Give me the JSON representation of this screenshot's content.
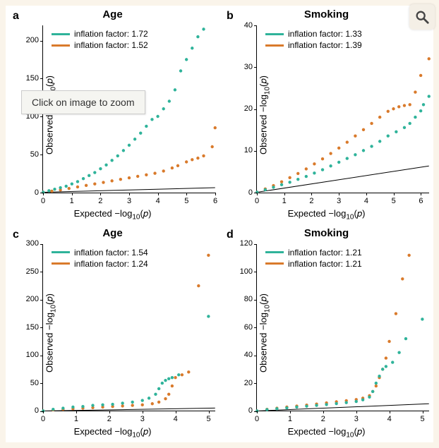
{
  "background_color": "#faf4ea",
  "figure_background": "#ffffff",
  "tooltip_text": "Click on image to zoom",
  "zoom_icon_name": "magnify-icon",
  "colors": {
    "series1": "#2fb39a",
    "series2": "#d97a2b",
    "reference_line": "#000000",
    "text": "#000000"
  },
  "marker": {
    "shape": "circle",
    "radius": 2.2
  },
  "legend_swatch": {
    "width": 26,
    "height": 3
  },
  "fontsize": {
    "panel_letter": 16,
    "title": 15,
    "axis_label": 13,
    "tick": 11,
    "legend": 12
  },
  "axis_labels": {
    "x_prefix": "Expected  −log",
    "x_sub": "10",
    "x_suffix": "(𝑝)",
    "y_prefix": "Observed  −log",
    "y_sub": "10",
    "y_suffix": "(𝑝)"
  },
  "panels": {
    "a": {
      "letter": "a",
      "title": "Age",
      "legend": [
        {
          "label": "inflation factor: 1.72",
          "color": "#2fb39a"
        },
        {
          "label": "inflation factor: 1.52",
          "color": "#d97a2b"
        }
      ],
      "xlim": [
        0,
        6
      ],
      "xticks": [
        0,
        1,
        2,
        3,
        4,
        5,
        6
      ],
      "ylim": [
        0,
        220
      ],
      "yticks": [
        0,
        50,
        100,
        150,
        200
      ],
      "reference_line": {
        "slope": 1,
        "intercept": 0
      },
      "series1": [
        [
          0,
          0
        ],
        [
          0.2,
          2
        ],
        [
          0.4,
          4
        ],
        [
          0.6,
          6
        ],
        [
          0.8,
          8
        ],
        [
          1.0,
          11
        ],
        [
          1.2,
          14
        ],
        [
          1.4,
          18
        ],
        [
          1.6,
          22
        ],
        [
          1.8,
          26
        ],
        [
          2.0,
          31
        ],
        [
          2.2,
          36
        ],
        [
          2.4,
          42
        ],
        [
          2.6,
          48
        ],
        [
          2.8,
          55
        ],
        [
          3.0,
          62
        ],
        [
          3.2,
          70
        ],
        [
          3.4,
          78
        ],
        [
          3.6,
          87
        ],
        [
          3.8,
          96
        ],
        [
          4.0,
          100
        ],
        [
          4.2,
          110
        ],
        [
          4.4,
          120
        ],
        [
          4.6,
          135
        ],
        [
          4.8,
          160
        ],
        [
          5.0,
          175
        ],
        [
          5.2,
          190
        ],
        [
          5.4,
          205
        ],
        [
          5.6,
          215
        ]
      ],
      "series2": [
        [
          0,
          0
        ],
        [
          0.3,
          1.5
        ],
        [
          0.6,
          3
        ],
        [
          0.9,
          5
        ],
        [
          1.2,
          7
        ],
        [
          1.5,
          9
        ],
        [
          1.8,
          11
        ],
        [
          2.1,
          13
        ],
        [
          2.4,
          15
        ],
        [
          2.7,
          17
        ],
        [
          3.0,
          19
        ],
        [
          3.3,
          21
        ],
        [
          3.6,
          23
        ],
        [
          3.9,
          25
        ],
        [
          4.2,
          28
        ],
        [
          4.5,
          32
        ],
        [
          4.7,
          35
        ],
        [
          5.0,
          40
        ],
        [
          5.2,
          43
        ],
        [
          5.4,
          45
        ],
        [
          5.6,
          48
        ],
        [
          5.9,
          60
        ],
        [
          6.0,
          85
        ]
      ]
    },
    "b": {
      "letter": "b",
      "title": "Smoking",
      "legend": [
        {
          "label": "inflation factor: 1.33",
          "color": "#2fb39a"
        },
        {
          "label": "inflation factor: 1.39",
          "color": "#d97a2b"
        }
      ],
      "xlim": [
        0,
        6.3
      ],
      "xticks": [
        0,
        1,
        2,
        3,
        4,
        5,
        6
      ],
      "ylim": [
        0,
        40
      ],
      "yticks": [
        0,
        10,
        20,
        30,
        40
      ],
      "reference_line": {
        "slope": 1,
        "intercept": 0
      },
      "series1": [
        [
          0,
          0
        ],
        [
          0.3,
          0.6
        ],
        [
          0.6,
          1.2
        ],
        [
          0.9,
          1.8
        ],
        [
          1.2,
          2.4
        ],
        [
          1.5,
          3.1
        ],
        [
          1.8,
          3.8
        ],
        [
          2.1,
          4.6
        ],
        [
          2.4,
          5.4
        ],
        [
          2.7,
          6.3
        ],
        [
          3.0,
          7.2
        ],
        [
          3.3,
          8.1
        ],
        [
          3.6,
          9.0
        ],
        [
          3.9,
          10.0
        ],
        [
          4.2,
          11.0
        ],
        [
          4.5,
          12.2
        ],
        [
          4.8,
          13.5
        ],
        [
          5.1,
          14.5
        ],
        [
          5.4,
          15.5
        ],
        [
          5.6,
          16.5
        ],
        [
          5.8,
          18
        ],
        [
          6.0,
          19.5
        ],
        [
          6.1,
          21
        ],
        [
          6.3,
          23
        ]
      ],
      "series2": [
        [
          0,
          0
        ],
        [
          0.3,
          0.8
        ],
        [
          0.6,
          1.6
        ],
        [
          0.9,
          2.5
        ],
        [
          1.2,
          3.5
        ],
        [
          1.5,
          4.5
        ],
        [
          1.8,
          5.6
        ],
        [
          2.1,
          6.8
        ],
        [
          2.4,
          8.0
        ],
        [
          2.7,
          9.3
        ],
        [
          3.0,
          10.6
        ],
        [
          3.3,
          12.0
        ],
        [
          3.6,
          13.5
        ],
        [
          3.9,
          15.0
        ],
        [
          4.2,
          16.5
        ],
        [
          4.5,
          18.0
        ],
        [
          4.8,
          19.4
        ],
        [
          5.0,
          20.0
        ],
        [
          5.2,
          20.5
        ],
        [
          5.4,
          20.8
        ],
        [
          5.6,
          21.0
        ],
        [
          5.8,
          24
        ],
        [
          6.0,
          28
        ],
        [
          6.3,
          32
        ]
      ]
    },
    "c": {
      "letter": "c",
      "title": "Age",
      "legend": [
        {
          "label": "inflation factor: 1.54",
          "color": "#2fb39a"
        },
        {
          "label": "inflation factor: 1.24",
          "color": "#d97a2b"
        }
      ],
      "xlim": [
        0,
        5.2
      ],
      "xticks": [
        0,
        1,
        2,
        3,
        4,
        5
      ],
      "ylim": [
        0,
        300
      ],
      "yticks": [
        0,
        50,
        100,
        150,
        200,
        250,
        300
      ],
      "reference_line": {
        "slope": 1,
        "intercept": 0
      },
      "series1": [
        [
          0,
          0
        ],
        [
          0.3,
          3
        ],
        [
          0.6,
          5
        ],
        [
          0.9,
          7
        ],
        [
          1.2,
          8
        ],
        [
          1.5,
          10
        ],
        [
          1.8,
          11
        ],
        [
          2.1,
          12
        ],
        [
          2.4,
          14
        ],
        [
          2.7,
          16
        ],
        [
          3.0,
          19
        ],
        [
          3.2,
          23
        ],
        [
          3.4,
          30
        ],
        [
          3.5,
          40
        ],
        [
          3.6,
          50
        ],
        [
          3.7,
          55
        ],
        [
          3.8,
          58
        ],
        [
          3.9,
          60
        ],
        [
          4.1,
          65
        ],
        [
          5.0,
          170
        ]
      ],
      "series2": [
        [
          0,
          0
        ],
        [
          0.3,
          2
        ],
        [
          0.6,
          3
        ],
        [
          0.9,
          4
        ],
        [
          1.2,
          5
        ],
        [
          1.5,
          6
        ],
        [
          1.8,
          7
        ],
        [
          2.1,
          8
        ],
        [
          2.4,
          9
        ],
        [
          2.7,
          10
        ],
        [
          3.0,
          11
        ],
        [
          3.3,
          13
        ],
        [
          3.5,
          16
        ],
        [
          3.7,
          22
        ],
        [
          3.8,
          30
        ],
        [
          3.9,
          45
        ],
        [
          4.0,
          60
        ],
        [
          4.2,
          65
        ],
        [
          4.4,
          70
        ],
        [
          4.7,
          225
        ],
        [
          5.0,
          280
        ]
      ]
    },
    "d": {
      "letter": "d",
      "title": "Smoking",
      "legend": [
        {
          "label": "inflation factor: 1.21",
          "color": "#2fb39a"
        },
        {
          "label": "inflation factor: 1.21",
          "color": "#d97a2b"
        }
      ],
      "xlim": [
        0,
        5.2
      ],
      "xticks": [
        0,
        1,
        2,
        3,
        4,
        5
      ],
      "ylim": [
        0,
        120
      ],
      "yticks": [
        0,
        20,
        40,
        60,
        80,
        100,
        120
      ],
      "reference_line": {
        "slope": 1,
        "intercept": 0
      },
      "series1": [
        [
          0,
          0
        ],
        [
          0.3,
          1
        ],
        [
          0.6,
          1.6
        ],
        [
          0.9,
          2.2
        ],
        [
          1.2,
          2.8
        ],
        [
          1.5,
          3.4
        ],
        [
          1.8,
          4.0
        ],
        [
          2.1,
          4.6
        ],
        [
          2.4,
          5.3
        ],
        [
          2.7,
          6.0
        ],
        [
          3.0,
          6.8
        ],
        [
          3.2,
          8.0
        ],
        [
          3.4,
          10
        ],
        [
          3.5,
          14
        ],
        [
          3.6,
          20
        ],
        [
          3.7,
          25
        ],
        [
          3.8,
          30
        ],
        [
          3.9,
          32
        ],
        [
          4.1,
          35
        ],
        [
          4.3,
          42
        ],
        [
          4.5,
          52
        ],
        [
          5.0,
          66
        ]
      ],
      "series2": [
        [
          0,
          0
        ],
        [
          0.3,
          1.2
        ],
        [
          0.6,
          2.0
        ],
        [
          0.9,
          2.8
        ],
        [
          1.2,
          3.5
        ],
        [
          1.5,
          4.2
        ],
        [
          1.8,
          5.0
        ],
        [
          2.1,
          5.8
        ],
        [
          2.4,
          6.6
        ],
        [
          2.7,
          7.4
        ],
        [
          3.0,
          8.2
        ],
        [
          3.2,
          9.2
        ],
        [
          3.4,
          11
        ],
        [
          3.5,
          14
        ],
        [
          3.6,
          18
        ],
        [
          3.7,
          24
        ],
        [
          3.8,
          30
        ],
        [
          3.9,
          38
        ],
        [
          4.0,
          50
        ],
        [
          4.2,
          70
        ],
        [
          4.4,
          95
        ],
        [
          4.6,
          112
        ]
      ]
    }
  }
}
